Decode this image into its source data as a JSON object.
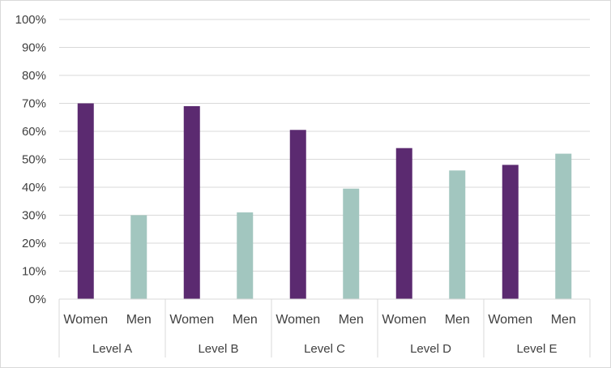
{
  "chart_data": {
    "type": "bar",
    "title": "",
    "xlabel": "",
    "ylabel": "",
    "ylim": [
      0,
      100
    ],
    "y_ticks": [
      "0%",
      "10%",
      "20%",
      "30%",
      "40%",
      "50%",
      "60%",
      "70%",
      "80%",
      "90%",
      "100%"
    ],
    "grid": true,
    "legend": "none",
    "groups": [
      "Level A",
      "Level B",
      "Level C",
      "Level D",
      "Level E"
    ],
    "categories": [
      {
        "group": "Level A",
        "label": "Women",
        "value": 70,
        "color": "#5b2a70"
      },
      {
        "group": "Level A",
        "label": "Men",
        "value": 30,
        "color": "#a2c6bf"
      },
      {
        "group": "Level B",
        "label": "Women",
        "value": 69,
        "color": "#5b2a70"
      },
      {
        "group": "Level B",
        "label": "Men",
        "value": 31,
        "color": "#a2c6bf"
      },
      {
        "group": "Level C",
        "label": "Women",
        "value": 60.5,
        "color": "#5b2a70"
      },
      {
        "group": "Level C",
        "label": "Men",
        "value": 39.5,
        "color": "#a2c6bf"
      },
      {
        "group": "Level D",
        "label": "Women",
        "value": 54,
        "color": "#5b2a70"
      },
      {
        "group": "Level D",
        "label": "Men",
        "value": 46,
        "color": "#a2c6bf"
      },
      {
        "group": "Level E",
        "label": "Women",
        "value": 48,
        "color": "#5b2a70"
      },
      {
        "group": "Level E",
        "label": "Men",
        "value": 52,
        "color": "#a2c6bf"
      }
    ],
    "colors": {
      "women": "#5b2a70",
      "men": "#a2c6bf",
      "grid": "#d9d9d9",
      "text": "#404040"
    }
  }
}
